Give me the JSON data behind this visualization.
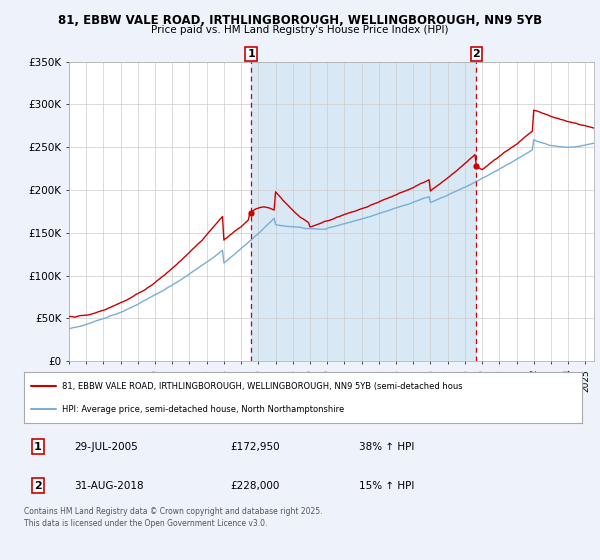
{
  "title_line1": "81, EBBW VALE ROAD, IRTHLINGBOROUGH, WELLINGBOROUGH, NN9 5YB",
  "title_line2": "Price paid vs. HM Land Registry's House Price Index (HPI)",
  "bg_color": "#eef2fa",
  "plot_bg_color": "#ffffff",
  "grid_color": "#cccccc",
  "red_color": "#cc0000",
  "blue_color": "#7aaed6",
  "shaded_color": "#d8e8f5",
  "vline_color": "#cc0000",
  "legend_label_red": "81, EBBW VALE ROAD, IRTHLINGBOROUGH, WELLINGBOROUGH, NN9 5YB (semi-detached hous",
  "legend_label_blue": "HPI: Average price, semi-detached house, North Northamptonshire",
  "transaction1_date": "29-JUL-2005",
  "transaction1_price": "£172,950",
  "transaction1_hpi": "38% ↑ HPI",
  "transaction2_date": "31-AUG-2018",
  "transaction2_price": "£228,000",
  "transaction2_hpi": "15% ↑ HPI",
  "footer": "Contains HM Land Registry data © Crown copyright and database right 2025.\nThis data is licensed under the Open Government Licence v3.0.",
  "ylim": [
    0,
    350000
  ],
  "yticks": [
    0,
    50000,
    100000,
    150000,
    200000,
    250000,
    300000,
    350000
  ],
  "ytick_labels": [
    "£0",
    "£50K",
    "£100K",
    "£150K",
    "£200K",
    "£250K",
    "£300K",
    "£350K"
  ],
  "year_start": 1995,
  "year_end": 2025,
  "t1_year": 2005.583,
  "t2_year": 2018.667,
  "price_at_t1": 172950,
  "price_at_t2": 228000
}
